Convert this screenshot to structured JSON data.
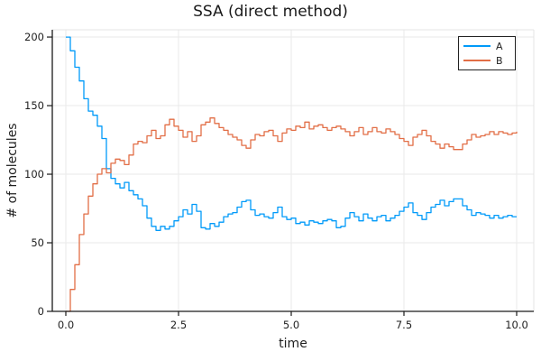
{
  "title": "SSA (direct method)",
  "colors": {
    "series_a": "#009af9",
    "series_b": "#e26e46",
    "grid": "#eaeaea",
    "frame_light": "#e4e4e4",
    "spine": "#1a1a1a",
    "text": "#1f1f1f",
    "legend_border": "#222222",
    "background": "#ffffff"
  },
  "chart_data": {
    "type": "line",
    "title": "SSA (direct method)",
    "xlabel": "time",
    "ylabel": "# of molecules",
    "xlim": [
      -0.3,
      10.38
    ],
    "ylim": [
      0,
      205.3
    ],
    "xticks": [
      0.0,
      2.5,
      5.0,
      7.5,
      10.0
    ],
    "xtick_labels": [
      "0.0",
      "2.5",
      "5.0",
      "7.5",
      "10.0"
    ],
    "yticks": [
      0,
      50,
      100,
      150,
      200
    ],
    "ytick_labels": [
      "0",
      "50",
      "100",
      "150",
      "200"
    ],
    "grid": true,
    "legend_position": "top-right",
    "line_style": "steps-post",
    "x_start": 0.0,
    "x_step": 0.1,
    "series": [
      {
        "name": "A",
        "color": "#009af9",
        "values": [
          200,
          190,
          178,
          168,
          155,
          146,
          143,
          135,
          126,
          104,
          97,
          93,
          90,
          94,
          88,
          85,
          82,
          77,
          68,
          62,
          59,
          62,
          60,
          62,
          66,
          69,
          74,
          71,
          78,
          73,
          61,
          60,
          64,
          62,
          65,
          69,
          71,
          72,
          76,
          80,
          81,
          74,
          70,
          71,
          69,
          68,
          72,
          76,
          69,
          67,
          68,
          64,
          65,
          63,
          66,
          65,
          64,
          66,
          67,
          66,
          61,
          62,
          68,
          72,
          69,
          66,
          71,
          68,
          66,
          69,
          70,
          66,
          68,
          70,
          73,
          76,
          79,
          72,
          70,
          67,
          72,
          76,
          78,
          81,
          77,
          80,
          82,
          82,
          77,
          74,
          70,
          72,
          71,
          70,
          68,
          70,
          68,
          69,
          70,
          69,
          69
        ]
      },
      {
        "name": "B",
        "color": "#e26e46",
        "values": [
          0,
          16,
          34,
          56,
          71,
          84,
          93,
          100,
          104,
          101,
          108,
          111,
          110,
          107,
          114,
          122,
          124,
          123,
          128,
          132,
          126,
          128,
          136,
          140,
          135,
          132,
          127,
          131,
          124,
          128,
          136,
          138,
          141,
          137,
          134,
          132,
          129,
          127,
          125,
          121,
          119,
          125,
          129,
          128,
          131,
          132,
          128,
          124,
          130,
          133,
          132,
          135,
          134,
          138,
          133,
          135,
          136,
          134,
          132,
          134,
          135,
          133,
          131,
          128,
          131,
          134,
          129,
          131,
          134,
          131,
          130,
          133,
          131,
          129,
          126,
          124,
          121,
          127,
          129,
          132,
          128,
          124,
          122,
          119,
          122,
          120,
          118,
          118,
          122,
          125,
          129,
          127,
          128,
          129,
          131,
          129,
          131,
          130,
          129,
          130,
          131
        ]
      }
    ]
  }
}
